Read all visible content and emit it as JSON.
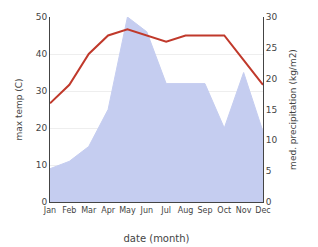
{
  "chart_data": {
    "type": "line",
    "xlabel": "date (month)",
    "ylabel": "max temp (C)",
    "y2label": "med. precipitation (kg/m2)",
    "categories": [
      "Jan",
      "Feb",
      "Mar",
      "Apr",
      "May",
      "Jun",
      "Jul",
      "Aug",
      "Sep",
      "Oct",
      "Nov",
      "Dec"
    ],
    "series": [
      {
        "type": "area",
        "color": "#c5cdf0",
        "values": [
          9,
          11,
          15,
          25,
          50,
          46,
          32,
          32,
          32,
          20,
          35,
          19
        ]
      },
      {
        "type": "line",
        "color": "#c0392b",
        "axis": "y2",
        "values": [
          16,
          19,
          24,
          27,
          28,
          27,
          26,
          27,
          27,
          27,
          23,
          19
        ]
      }
    ],
    "ylim": [
      0,
      50
    ],
    "yticks": [
      0,
      10,
      20,
      30,
      40,
      50
    ],
    "y2lim": [
      0,
      30
    ],
    "y2ticks": [
      0,
      5,
      10,
      15,
      20,
      25,
      30
    ],
    "grid": true
  }
}
